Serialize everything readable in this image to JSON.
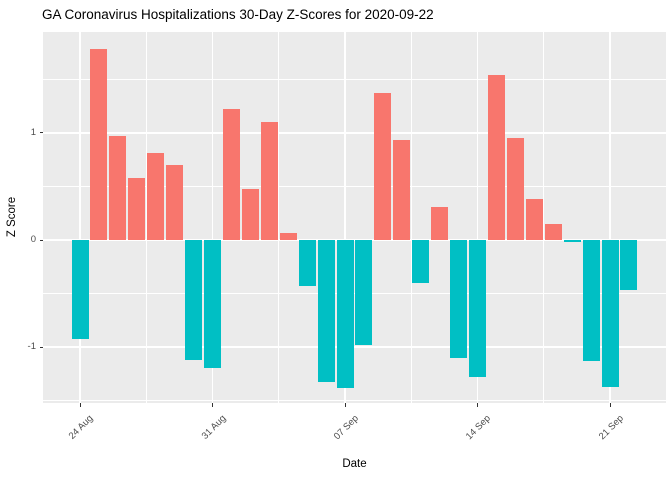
{
  "chart_data": {
    "type": "bar",
    "title": "GA Coronavirus Hospitalizations 30-Day Z-Scores for 2020-09-22",
    "xlabel": "Date",
    "ylabel": "Z Score",
    "categories": [
      "2020-08-24",
      "2020-08-25",
      "2020-08-26",
      "2020-08-27",
      "2020-08-28",
      "2020-08-29",
      "2020-08-30",
      "2020-08-31",
      "2020-09-01",
      "2020-09-02",
      "2020-09-03",
      "2020-09-04",
      "2020-09-05",
      "2020-09-06",
      "2020-09-07",
      "2020-09-08",
      "2020-09-09",
      "2020-09-10",
      "2020-09-11",
      "2020-09-12",
      "2020-09-13",
      "2020-09-14",
      "2020-09-15",
      "2020-09-16",
      "2020-09-17",
      "2020-09-18",
      "2020-09-19",
      "2020-09-20",
      "2020-09-21",
      "2020-09-22"
    ],
    "values": [
      -0.92,
      1.78,
      0.97,
      0.58,
      0.81,
      0.7,
      -1.12,
      -1.19,
      1.22,
      0.48,
      1.1,
      0.07,
      -0.43,
      -1.32,
      -1.38,
      -0.98,
      1.37,
      0.93,
      -0.4,
      0.31,
      -1.1,
      -1.28,
      1.54,
      0.95,
      0.38,
      0.15,
      -0.02,
      -1.13,
      -1.37,
      -0.47
    ],
    "x_tick_labels": [
      "24 Aug",
      "31 Aug",
      "07 Sep",
      "14 Sep",
      "21 Sep"
    ],
    "x_tick_indices": [
      0,
      7,
      14,
      21,
      28
    ],
    "x_minor_indices": [
      3.5,
      10.5,
      17.5,
      24.5
    ],
    "y_tick_labels": [
      "-1",
      "0",
      "1"
    ],
    "y_tick_values": [
      -1,
      0,
      1
    ],
    "y_minor_values": [
      -1.5,
      -0.5,
      0.5,
      1.5
    ],
    "ylim": [
      -1.52,
      1.94
    ],
    "grid": true,
    "legend": "none",
    "colors": {
      "positive": "#F8766D",
      "negative": "#00BFC4",
      "panel_bg": "#EBEBEB",
      "gridline": "#FFFFFF",
      "tick_text": "#4D4D4D",
      "title_text": "#000000",
      "background": "#FFFFFF"
    }
  }
}
